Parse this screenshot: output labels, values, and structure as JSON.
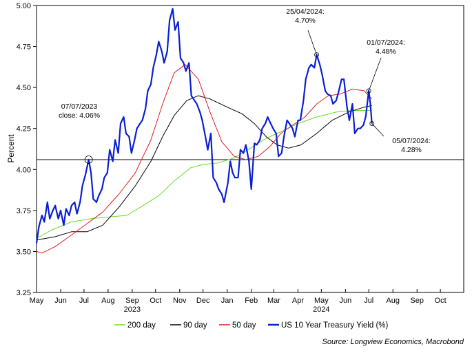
{
  "chart_data": {
    "type": "line",
    "ylabel": "Percent",
    "ylim": [
      3.25,
      5.0
    ],
    "yticks": [
      "3.25",
      "3.50",
      "3.75",
      "4.00",
      "4.25",
      "4.50",
      "4.75",
      "5.00"
    ],
    "xlim": [
      "2023-05-01",
      "2024-10-31"
    ],
    "month_labels": [
      "May",
      "Jun",
      "Jul",
      "Aug",
      "Sep",
      "Oct",
      "Nov",
      "Dec",
      "Jan",
      "Feb",
      "Mar",
      "Apr",
      "May",
      "Jun",
      "Jul",
      "Aug",
      "Sep",
      "Oct"
    ],
    "year_labels": [
      {
        "label": "2023",
        "month_index": 4
      },
      {
        "label": "2024",
        "month_index": 12
      }
    ],
    "reference_line": 4.06,
    "grid": false,
    "legend_position": "bottom",
    "series": [
      {
        "name": "200 day",
        "color": "#66dd22",
        "points": [
          [
            "2023-05-01",
            3.58
          ],
          [
            "2023-05-20",
            3.63
          ],
          [
            "2023-06-15",
            3.68
          ],
          [
            "2023-07-10",
            3.7
          ],
          [
            "2023-08-01",
            3.71
          ],
          [
            "2023-08-25",
            3.72
          ],
          [
            "2023-09-15",
            3.78
          ],
          [
            "2023-10-05",
            3.84
          ],
          [
            "2023-10-25",
            3.93
          ],
          [
            "2023-11-15",
            4.01
          ],
          [
            "2023-12-01",
            4.03
          ],
          [
            "2023-12-20",
            4.04
          ],
          [
            "2024-01-10",
            4.07
          ],
          [
            "2024-01-31",
            4.13
          ],
          [
            "2024-02-20",
            4.19
          ],
          [
            "2024-03-10",
            4.23
          ],
          [
            "2024-04-01",
            4.28
          ],
          [
            "2024-04-25",
            4.32
          ],
          [
            "2024-05-20",
            4.35
          ],
          [
            "2024-06-10",
            4.36
          ],
          [
            "2024-07-05",
            4.36
          ]
        ]
      },
      {
        "name": "90 day",
        "color": "#000000",
        "points": [
          [
            "2023-05-01",
            3.57
          ],
          [
            "2023-05-25",
            3.59
          ],
          [
            "2023-06-15",
            3.62
          ],
          [
            "2023-07-05",
            3.62
          ],
          [
            "2023-07-25",
            3.66
          ],
          [
            "2023-08-15",
            3.77
          ],
          [
            "2023-09-05",
            3.9
          ],
          [
            "2023-09-25",
            4.05
          ],
          [
            "2023-10-10",
            4.2
          ],
          [
            "2023-10-25",
            4.33
          ],
          [
            "2023-11-10",
            4.42
          ],
          [
            "2023-11-25",
            4.45
          ],
          [
            "2023-12-10",
            4.43
          ],
          [
            "2024-01-01",
            4.38
          ],
          [
            "2024-01-20",
            4.34
          ],
          [
            "2024-02-05",
            4.28
          ],
          [
            "2024-02-20",
            4.2
          ],
          [
            "2024-03-05",
            4.15
          ],
          [
            "2024-03-20",
            4.13
          ],
          [
            "2024-04-05",
            4.15
          ],
          [
            "2024-04-25",
            4.22
          ],
          [
            "2024-05-15",
            4.3
          ],
          [
            "2024-06-05",
            4.35
          ],
          [
            "2024-06-25",
            4.38
          ],
          [
            "2024-07-05",
            4.39
          ]
        ]
      },
      {
        "name": "50 day",
        "color": "#e01c1c",
        "points": [
          [
            "2023-05-01",
            3.5
          ],
          [
            "2023-05-08",
            3.49
          ],
          [
            "2023-05-25",
            3.53
          ],
          [
            "2023-06-15",
            3.6
          ],
          [
            "2023-07-05",
            3.67
          ],
          [
            "2023-07-25",
            3.74
          ],
          [
            "2023-08-15",
            3.85
          ],
          [
            "2023-09-05",
            3.98
          ],
          [
            "2023-09-25",
            4.18
          ],
          [
            "2023-10-10",
            4.4
          ],
          [
            "2023-10-25",
            4.59
          ],
          [
            "2023-11-08",
            4.64
          ],
          [
            "2023-11-25",
            4.55
          ],
          [
            "2023-12-10",
            4.35
          ],
          [
            "2023-12-25",
            4.17
          ],
          [
            "2024-01-10",
            4.08
          ],
          [
            "2024-01-25",
            4.06
          ],
          [
            "2024-02-10",
            4.08
          ],
          [
            "2024-02-25",
            4.14
          ],
          [
            "2024-03-10",
            4.22
          ],
          [
            "2024-03-25",
            4.27
          ],
          [
            "2024-04-10",
            4.32
          ],
          [
            "2024-04-25",
            4.4
          ],
          [
            "2024-05-10",
            4.45
          ],
          [
            "2024-05-25",
            4.46
          ],
          [
            "2024-06-10",
            4.49
          ],
          [
            "2024-06-25",
            4.48
          ],
          [
            "2024-07-05",
            4.43
          ]
        ]
      },
      {
        "name": "US 10 Year Treasury Yield (%)",
        "color": "#0a1ed6",
        "points": [
          [
            "2023-05-01",
            3.55
          ],
          [
            "2023-05-04",
            3.65
          ],
          [
            "2023-05-08",
            3.72
          ],
          [
            "2023-05-11",
            3.68
          ],
          [
            "2023-05-15",
            3.8
          ],
          [
            "2023-05-18",
            3.7
          ],
          [
            "2023-05-22",
            3.75
          ],
          [
            "2023-05-25",
            3.78
          ],
          [
            "2023-05-29",
            3.7
          ],
          [
            "2023-06-01",
            3.75
          ],
          [
            "2023-06-05",
            3.66
          ],
          [
            "2023-06-08",
            3.76
          ],
          [
            "2023-06-12",
            3.72
          ],
          [
            "2023-06-15",
            3.78
          ],
          [
            "2023-06-19",
            3.8
          ],
          [
            "2023-06-22",
            3.73
          ],
          [
            "2023-06-26",
            3.8
          ],
          [
            "2023-06-29",
            3.9
          ],
          [
            "2023-07-03",
            3.97
          ],
          [
            "2023-07-07",
            4.06
          ],
          [
            "2023-07-10",
            3.98
          ],
          [
            "2023-07-13",
            3.82
          ],
          [
            "2023-07-17",
            3.8
          ],
          [
            "2023-07-20",
            3.84
          ],
          [
            "2023-07-24",
            3.88
          ],
          [
            "2023-07-27",
            3.95
          ],
          [
            "2023-07-31",
            3.98
          ],
          [
            "2023-08-03",
            4.12
          ],
          [
            "2023-08-07",
            4.05
          ],
          [
            "2023-08-10",
            4.18
          ],
          [
            "2023-08-14",
            4.1
          ],
          [
            "2023-08-17",
            4.28
          ],
          [
            "2023-08-21",
            4.32
          ],
          [
            "2023-08-24",
            4.22
          ],
          [
            "2023-08-28",
            4.2
          ],
          [
            "2023-08-31",
            4.1
          ],
          [
            "2023-09-04",
            4.18
          ],
          [
            "2023-09-07",
            4.25
          ],
          [
            "2023-09-11",
            4.28
          ],
          [
            "2023-09-14",
            4.3
          ],
          [
            "2023-09-18",
            4.37
          ],
          [
            "2023-09-21",
            4.48
          ],
          [
            "2023-09-25",
            4.52
          ],
          [
            "2023-09-28",
            4.62
          ],
          [
            "2023-10-02",
            4.7
          ],
          [
            "2023-10-05",
            4.78
          ],
          [
            "2023-10-09",
            4.72
          ],
          [
            "2023-10-12",
            4.65
          ],
          [
            "2023-10-16",
            4.72
          ],
          [
            "2023-10-19",
            4.91
          ],
          [
            "2023-10-23",
            4.98
          ],
          [
            "2023-10-26",
            4.85
          ],
          [
            "2023-10-30",
            4.9
          ],
          [
            "2023-11-02",
            4.68
          ],
          [
            "2023-11-06",
            4.65
          ],
          [
            "2023-11-09",
            4.6
          ],
          [
            "2023-11-13",
            4.65
          ],
          [
            "2023-11-16",
            4.45
          ],
          [
            "2023-11-20",
            4.42
          ],
          [
            "2023-11-23",
            4.4
          ],
          [
            "2023-11-27",
            4.35
          ],
          [
            "2023-11-30",
            4.3
          ],
          [
            "2023-12-04",
            4.2
          ],
          [
            "2023-12-07",
            4.12
          ],
          [
            "2023-12-11",
            4.22
          ],
          [
            "2023-12-14",
            3.95
          ],
          [
            "2023-12-18",
            3.92
          ],
          [
            "2023-12-21",
            3.88
          ],
          [
            "2023-12-25",
            3.85
          ],
          [
            "2023-12-28",
            3.8
          ],
          [
            "2024-01-02",
            3.92
          ],
          [
            "2024-01-05",
            4.05
          ],
          [
            "2024-01-08",
            3.98
          ],
          [
            "2024-01-11",
            3.95
          ],
          [
            "2024-01-15",
            3.95
          ],
          [
            "2024-01-18",
            4.12
          ],
          [
            "2024-01-22",
            4.1
          ],
          [
            "2024-01-25",
            4.15
          ],
          [
            "2024-01-29",
            4.05
          ],
          [
            "2024-02-01",
            3.88
          ],
          [
            "2024-02-05",
            4.16
          ],
          [
            "2024-02-08",
            4.15
          ],
          [
            "2024-02-12",
            4.18
          ],
          [
            "2024-02-15",
            4.25
          ],
          [
            "2024-02-19",
            4.28
          ],
          [
            "2024-02-22",
            4.32
          ],
          [
            "2024-02-26",
            4.28
          ],
          [
            "2024-02-29",
            4.25
          ],
          [
            "2024-03-04",
            4.22
          ],
          [
            "2024-03-07",
            4.08
          ],
          [
            "2024-03-11",
            4.1
          ],
          [
            "2024-03-14",
            4.2
          ],
          [
            "2024-03-18",
            4.3
          ],
          [
            "2024-03-21",
            4.28
          ],
          [
            "2024-03-25",
            4.25
          ],
          [
            "2024-03-28",
            4.2
          ],
          [
            "2024-04-01",
            4.3
          ],
          [
            "2024-04-04",
            4.3
          ],
          [
            "2024-04-08",
            4.42
          ],
          [
            "2024-04-11",
            4.55
          ],
          [
            "2024-04-15",
            4.62
          ],
          [
            "2024-04-18",
            4.64
          ],
          [
            "2024-04-22",
            4.62
          ],
          [
            "2024-04-25",
            4.7
          ],
          [
            "2024-04-29",
            4.64
          ],
          [
            "2024-05-02",
            4.58
          ],
          [
            "2024-05-06",
            4.48
          ],
          [
            "2024-05-09",
            4.46
          ],
          [
            "2024-05-13",
            4.45
          ],
          [
            "2024-05-16",
            4.4
          ],
          [
            "2024-05-20",
            4.42
          ],
          [
            "2024-05-23",
            4.47
          ],
          [
            "2024-05-27",
            4.55
          ],
          [
            "2024-05-30",
            4.55
          ],
          [
            "2024-06-03",
            4.38
          ],
          [
            "2024-06-06",
            4.3
          ],
          [
            "2024-06-10",
            4.4
          ],
          [
            "2024-06-13",
            4.22
          ],
          [
            "2024-06-17",
            4.25
          ],
          [
            "2024-06-20",
            4.25
          ],
          [
            "2024-06-24",
            4.27
          ],
          [
            "2024-06-27",
            4.32
          ],
          [
            "2024-07-01",
            4.48
          ],
          [
            "2024-07-03",
            4.4
          ],
          [
            "2024-07-05",
            4.28
          ]
        ]
      }
    ],
    "annotations": [
      {
        "date": "2023-07-07",
        "value": 4.06,
        "lines": [
          "07/07/2023",
          "close: 4.06%"
        ]
      },
      {
        "date": "2024-04-25",
        "value": 4.7,
        "lines": [
          "25/04/2024:",
          "4.70%"
        ]
      },
      {
        "date": "2024-07-01",
        "value": 4.48,
        "lines": [
          "01/07/2024:",
          "4.48%"
        ]
      },
      {
        "date": "2024-07-05",
        "value": 4.28,
        "lines": [
          "05/07/2024:",
          "4.28%"
        ]
      }
    ],
    "source": "Source: Longview Economics, Macrobond"
  }
}
